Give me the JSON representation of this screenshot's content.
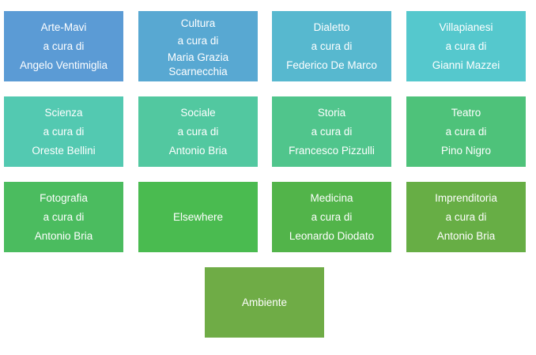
{
  "tiles": [
    {
      "title": "Arte-Mavi",
      "curator_prefix": "a cura di",
      "curator": "Angelo Ventimiglia",
      "color": "#5b9bd5"
    },
    {
      "title": "Cultura",
      "curator_prefix": "a cura di",
      "curator_line1": "Maria Grazia",
      "curator_line2": "Scarnecchia",
      "color": "#58a8d2"
    },
    {
      "title": "Dialetto",
      "curator_prefix": "a cura di",
      "curator": "Federico De Marco",
      "color": "#57b8cf"
    },
    {
      "title": "Villapianesi",
      "curator_prefix": "a cura di",
      "curator": "Gianni Mazzei",
      "color": "#55c8cd"
    },
    {
      "title": "Scienza",
      "curator_prefix": "a cura di",
      "curator": "Oreste Bellini",
      "color": "#53c9b1"
    },
    {
      "title": "Sociale",
      "curator_prefix": "a cura di",
      "curator": "Antonio Bria",
      "color": "#52c8a0"
    },
    {
      "title": "Storia",
      "curator_prefix": "a cura di",
      "curator": "Francesco Pizzulli",
      "color": "#50c58c"
    },
    {
      "title": "Teatro",
      "curator_prefix": "a cura di",
      "curator": "Pino Nigro",
      "color": "#4ec27a"
    },
    {
      "title": "Fotografia",
      "curator_prefix": "a cura di",
      "curator": "Antonio Bria",
      "color": "#4bbc5f"
    },
    {
      "title": "Elsewhere",
      "color": "#4abb50"
    },
    {
      "title": "Medicina",
      "curator_prefix": "a cura di",
      "curator": "Leonardo Diodato",
      "color": "#52b44a"
    },
    {
      "title": "Imprenditoria",
      "curator_prefix": "a cura di",
      "curator": "Antonio Bria",
      "color": "#67ae45"
    },
    {
      "title": "Ambiente",
      "color": "#6fac46"
    }
  ]
}
